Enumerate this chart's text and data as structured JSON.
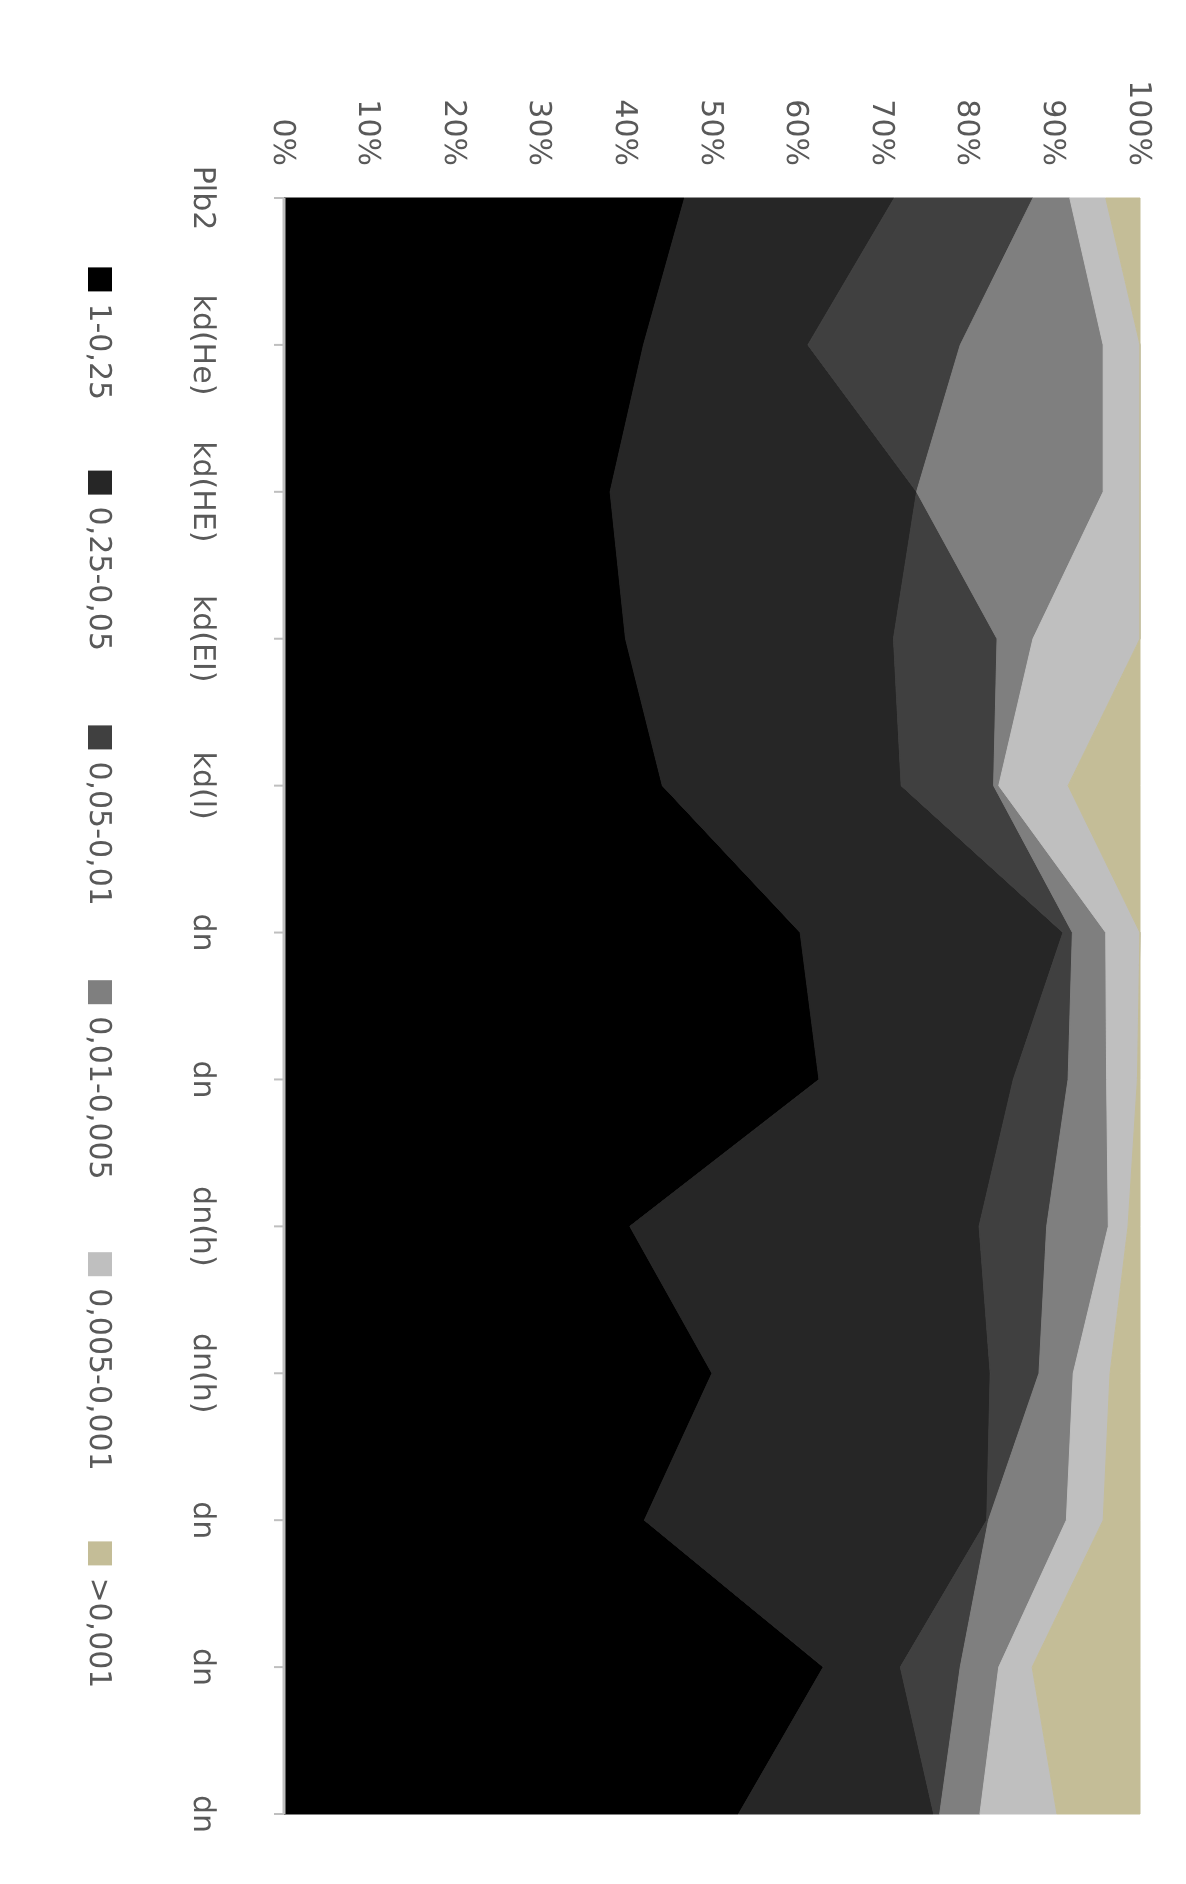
{
  "chart_data": {
    "type": "area",
    "stacked": true,
    "orientation": "horizontal",
    "legend": "left",
    "grid": false,
    "categories": [
      "Plb2",
      "kd(He)",
      "kd(HE)",
      "kd(EI)",
      "kd(l)",
      "dn",
      "dn",
      "dn(h)",
      "dn(h)",
      "dn",
      "dn",
      "dn"
    ],
    "xlim": [
      0,
      100
    ],
    "xticks": [
      {
        "value": 0,
        "label": "0%"
      },
      {
        "value": 10,
        "label": "10%"
      },
      {
        "value": 20,
        "label": "20%"
      },
      {
        "value": 30,
        "label": "30%"
      },
      {
        "value": 40,
        "label": "40%"
      },
      {
        "value": 50,
        "label": "50%"
      },
      {
        "value": 60,
        "label": "60%"
      },
      {
        "value": 70,
        "label": "70%"
      },
      {
        "value": 80,
        "label": "80%"
      },
      {
        "value": 90,
        "label": "90%"
      },
      {
        "value": 100,
        "label": "100%"
      }
    ],
    "series": [
      {
        "name": "1-0,25",
        "color": "#000000",
        "values": [
          46.8,
          42.0,
          38.1,
          39.9,
          44.2,
          60.3,
          62.5,
          40.4,
          50.0,
          42.1,
          63.0,
          53.1
        ]
      },
      {
        "name": "0,25-0,05",
        "color": "#262626",
        "values": [
          24.5,
          19.2,
          35.8,
          31.3,
          27.9,
          30.7,
          22.7,
          40.8,
          32.5,
          40.0,
          9.0,
          22.8
        ]
      },
      {
        "name": "0,05-0,01",
        "color": "#404040",
        "values": [
          16.2,
          17.8,
          0,
          12.1,
          10.8,
          1.1,
          6.4,
          7.9,
          5.7,
          0.2,
          7.0,
          0.7
        ]
      },
      {
        "name": "0,01-0,005",
        "color": "#7f7f7f",
        "values": [
          4.3,
          16.7,
          21.8,
          4.2,
          0.6,
          3.9,
          4.5,
          7.2,
          4.0,
          9.1,
          4.5,
          4.7
        ]
      },
      {
        "name": "0,005-0,001",
        "color": "#bfbfbf",
        "values": [
          4.2,
          4.3,
          4.3,
          12.5,
          8.1,
          4.0,
          3.6,
          2.3,
          4.3,
          4.3,
          3.9,
          9.0
        ]
      },
      {
        "name": ">0,001",
        "color": "#c4bd97",
        "values": [
          4.0,
          0,
          0,
          0,
          8.4,
          0,
          0.3,
          1.4,
          3.5,
          4.3,
          12.6,
          9.7
        ]
      }
    ]
  }
}
